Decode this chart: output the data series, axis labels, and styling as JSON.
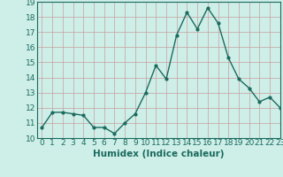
{
  "x": [
    0,
    1,
    2,
    3,
    4,
    5,
    6,
    7,
    8,
    9,
    10,
    11,
    12,
    13,
    14,
    15,
    16,
    17,
    18,
    19,
    20,
    21,
    22,
    23
  ],
  "y": [
    10.7,
    11.7,
    11.7,
    11.6,
    11.5,
    10.7,
    10.7,
    10.3,
    11.0,
    11.6,
    13.0,
    14.8,
    13.9,
    16.8,
    18.3,
    17.2,
    18.6,
    17.6,
    15.3,
    13.9,
    13.3,
    12.4,
    12.7,
    12.0
  ],
  "line_color": "#1a6b5e",
  "marker": "o",
  "marker_size": 2.0,
  "line_width": 1.0,
  "xlabel": "Humidex (Indice chaleur)",
  "xlabel_fontsize": 7.5,
  "xlabel_fontweight": "bold",
  "ylim": [
    10,
    19
  ],
  "xlim": [
    -0.5,
    23
  ],
  "yticks": [
    10,
    11,
    12,
    13,
    14,
    15,
    16,
    17,
    18,
    19
  ],
  "xticks": [
    0,
    1,
    2,
    3,
    4,
    5,
    6,
    7,
    8,
    9,
    10,
    11,
    12,
    13,
    14,
    15,
    16,
    17,
    18,
    19,
    20,
    21,
    22,
    23
  ],
  "grid_color": "#c8a0a0",
  "bg_color": "#ceeee8",
  "tick_fontsize": 6.5
}
